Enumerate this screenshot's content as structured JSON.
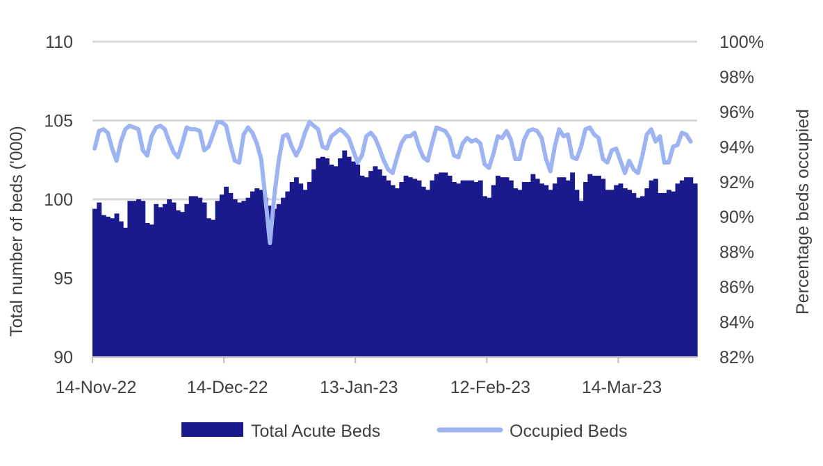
{
  "chart_data": {
    "type": "bar+line",
    "ylabel_left": "Total number of beds ('000)",
    "ylabel_right": "Percentage beds occupied",
    "ylim_left": [
      90,
      110
    ],
    "yticks_left": [
      "90",
      "95",
      "100",
      "105",
      "110"
    ],
    "ylim_right": [
      82,
      100
    ],
    "yticks_right": [
      "82%",
      "84%",
      "86%",
      "88%",
      "90%",
      "92%",
      "94%",
      "96%",
      "98%",
      "100%"
    ],
    "x_start": "14-Nov-22",
    "x_end": "07-Apr-23",
    "xticks": [
      "14-Nov-22",
      "14-Dec-22",
      "13-Jan-23",
      "12-Feb-23",
      "14-Mar-23"
    ],
    "grid": true,
    "legend_position": "bottom",
    "colors": {
      "bars": "#1a1a8c",
      "line": "#9db3f2",
      "grid": "#d9d9d9",
      "axis": "#bfbfbf"
    },
    "series": [
      {
        "name": "Total Acute Beds",
        "kind": "bar",
        "axis": "left",
        "values": [
          99.4,
          99.8,
          99.0,
          98.9,
          98.8,
          99.1,
          98.6,
          98.2,
          99.9,
          99.9,
          100.0,
          99.9,
          98.5,
          98.4,
          99.7,
          99.5,
          99.7,
          100.0,
          99.8,
          99.3,
          99.2,
          99.7,
          100.2,
          100.2,
          100.1,
          99.8,
          98.8,
          98.7,
          99.9,
          100.3,
          100.8,
          100.4,
          100.0,
          99.8,
          99.9,
          100.1,
          100.5,
          100.7,
          100.6,
          100.1,
          99.6,
          99.4,
          99.7,
          100.1,
          100.5,
          101.1,
          101.4,
          101.0,
          100.6,
          101.1,
          101.9,
          102.6,
          102.7,
          102.6,
          102.2,
          102.1,
          102.6,
          103.1,
          102.7,
          102.4,
          102.2,
          101.5,
          101.4,
          101.8,
          102.1,
          101.9,
          101.5,
          101.2,
          100.9,
          100.7,
          101.1,
          101.5,
          101.4,
          101.3,
          101.2,
          100.8,
          100.6,
          101.2,
          101.6,
          101.7,
          101.7,
          101.5,
          101.1,
          101.0,
          101.2,
          101.2,
          101.2,
          101.1,
          101.2,
          100.2,
          100.1,
          100.9,
          101.5,
          101.4,
          101.4,
          101.2,
          100.7,
          100.6,
          101.1,
          101.1,
          101.6,
          101.3,
          101.0,
          100.9,
          100.6,
          101.0,
          101.4,
          101.4,
          101.2,
          101.7,
          100.6,
          99.9,
          101.1,
          101.6,
          101.5,
          101.5,
          101.3,
          100.6,
          100.6,
          100.9,
          101.0,
          100.7,
          100.6,
          100.4,
          100.1,
          100.2,
          100.7,
          101.2,
          101.3,
          100.4,
          100.4,
          100.6,
          100.5,
          101.0,
          101.2,
          101.4,
          101.4,
          101.0
        ]
      },
      {
        "name": "Occupied Beds",
        "kind": "line",
        "axis": "right",
        "values": [
          93.9,
          94.9,
          95.0,
          94.8,
          93.9,
          93.2,
          94.3,
          95.0,
          95.2,
          95.1,
          95.0,
          93.8,
          93.5,
          94.6,
          95.1,
          95.2,
          95.0,
          94.3,
          93.7,
          93.4,
          94.2,
          95.1,
          95.0,
          95.0,
          94.9,
          93.8,
          94.0,
          94.7,
          95.4,
          95.4,
          95.2,
          94.1,
          93.2,
          93.1,
          94.7,
          95.1,
          94.8,
          94.2,
          93.3,
          91.0,
          88.5,
          91.2,
          93.2,
          94.6,
          94.7,
          94.0,
          93.5,
          94.0,
          94.8,
          95.4,
          95.2,
          95.0,
          94.0,
          93.9,
          94.6,
          94.8,
          95.0,
          94.8,
          94.5,
          93.8,
          93.1,
          93.5,
          94.6,
          94.8,
          94.5,
          93.9,
          93.2,
          92.7,
          92.5,
          93.4,
          94.2,
          94.6,
          94.6,
          94.8,
          94.0,
          93.4,
          93.2,
          94.2,
          95.1,
          95.0,
          94.9,
          94.5,
          93.5,
          93.4,
          94.2,
          94.5,
          94.3,
          94.4,
          94.2,
          93.0,
          92.8,
          93.6,
          94.6,
          94.5,
          94.9,
          94.4,
          93.3,
          93.3,
          94.4,
          94.9,
          95.0,
          94.9,
          94.5,
          93.3,
          92.6,
          94.0,
          95.0,
          94.6,
          94.7,
          93.4,
          93.3,
          94.0,
          95.0,
          95.1,
          94.7,
          94.5,
          93.3,
          93.1,
          93.8,
          93.9,
          93.2,
          92.5,
          93.2,
          92.7,
          92.5,
          93.5,
          94.7,
          95.0,
          94.3,
          94.6,
          93.1,
          93.1,
          94.0,
          94.1,
          94.8,
          94.7,
          94.3
        ]
      }
    ]
  }
}
